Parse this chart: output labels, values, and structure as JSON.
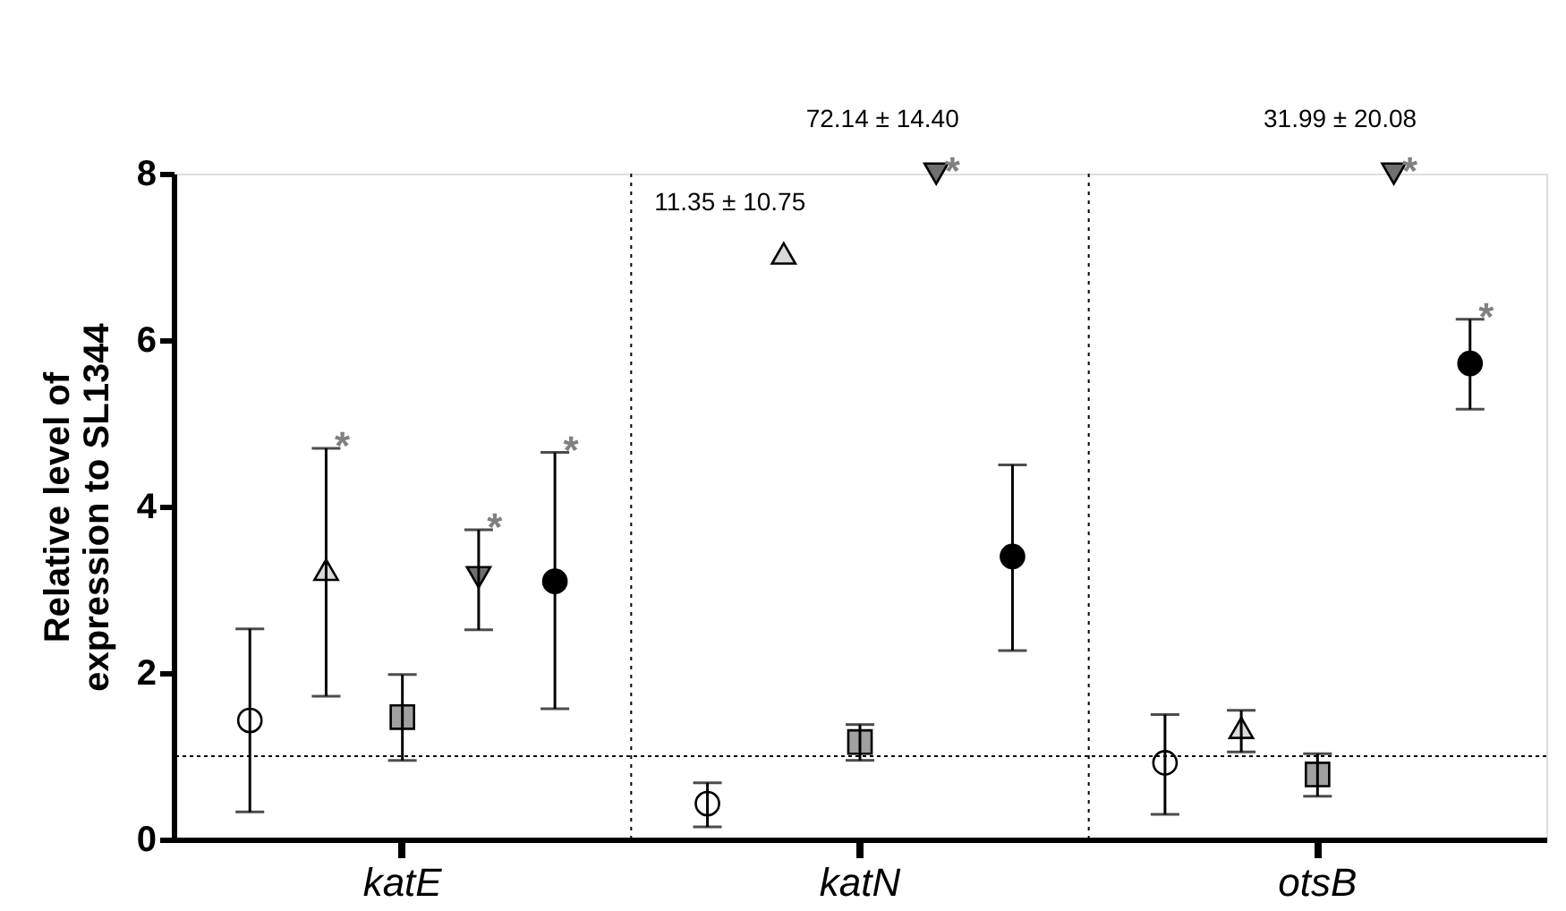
{
  "chart_data": {
    "type": "scatter",
    "categories": [
      "katE",
      "katN",
      "otsB"
    ],
    "ylabel": "Relative level of\nexpression to SL1344",
    "ylim": [
      0,
      8
    ],
    "yticks": [
      0,
      2,
      4,
      6,
      8
    ],
    "grid": "x",
    "ref_lines": [
      {
        "axis": "y",
        "value": 1,
        "line_style": "dotted"
      }
    ],
    "annotations": [
      "11.35 ± 10.75",
      "72.14 ± 14.40",
      "31.99 ± 20.08"
    ],
    "series": [
      {
        "color": "#ffffff",
        "marker": "circle",
        "values": [
          1.43,
          0.43,
          0.92
        ],
        "errors": [
          [
            0.33,
            2.53
          ],
          [
            0.15,
            0.68
          ],
          [
            0.3,
            1.5
          ]
        ],
        "value_labels": [
          null,
          null,
          null
        ]
      },
      {
        "color": "#d9d9d9",
        "marker": "triangle",
        "values": [
          3.2,
          7.0,
          1.3
        ],
        "errors": [
          [
            1.72,
            4.7
          ],
          null,
          [
            1.05,
            1.55
          ]
        ],
        "value_labels": [
          "*",
          null,
          null
        ]
      },
      {
        "color": "#a0a0a0",
        "marker": "square",
        "values": [
          1.47,
          1.17,
          0.78
        ],
        "errors": [
          [
            0.95,
            1.98
          ],
          [
            0.95,
            1.38
          ],
          [
            0.52,
            1.03
          ]
        ],
        "value_labels": [
          null,
          null,
          null
        ]
      },
      {
        "color": "#707070",
        "marker": "triangle-down",
        "values": [
          3.15,
          8.0,
          8.0
        ],
        "errors": [
          [
            2.52,
            3.72
          ],
          null,
          null
        ],
        "value_labels": [
          "*",
          "*",
          "*"
        ]
      },
      {
        "color": "#000000",
        "marker": "circle",
        "values": [
          3.1,
          3.4,
          5.72
        ],
        "errors": [
          [
            1.57,
            4.65
          ],
          [
            2.27,
            4.5
          ],
          [
            5.17,
            6.25
          ]
        ],
        "value_labels": [
          "*",
          null,
          "*"
        ]
      }
    ]
  }
}
